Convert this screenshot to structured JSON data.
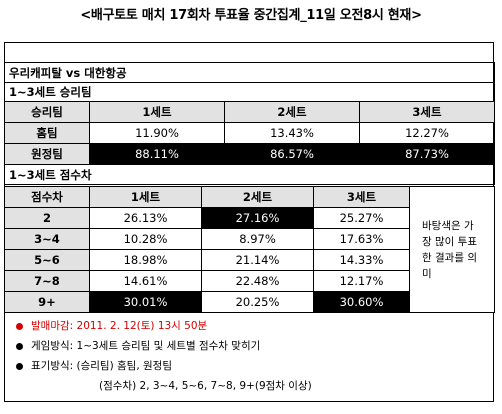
{
  "title": "<배구토토 매치 17회차 투표율 중간집계_11일 오전8시 현재>",
  "match": "우리캐피탈 vs 대한항공",
  "section1": {
    "label": "1~3세트 승리팀",
    "header": [
      "승리팀",
      "1세트",
      "2세트",
      "3세트"
    ],
    "rows": [
      {
        "team": "홈팀",
        "values": [
          "11.90%",
          "13.43%",
          "12.27%"
        ]
      },
      {
        "team": "원정팀",
        "values": [
          "88.11%",
          "86.57%",
          "87.73%"
        ]
      }
    ]
  },
  "section2": {
    "label": "1~3세트 점수차",
    "header": [
      "점수차",
      "1세트",
      "2세트",
      "3세트"
    ],
    "rows": [
      {
        "diff": "2",
        "values": [
          "26.13%",
          "27.16%",
          "25.27%"
        ],
        "highlight": [
          false,
          true,
          false
        ]
      },
      {
        "diff": "3~4",
        "values": [
          "10.28%",
          "8.97%",
          "17.63%"
        ],
        "highlight": [
          false,
          false,
          false
        ]
      },
      {
        "diff": "5~6",
        "values": [
          "18.98%",
          "21.14%",
          "14.33%"
        ],
        "highlight": [
          false,
          false,
          false
        ]
      },
      {
        "diff": "7~8",
        "values": [
          "14.61%",
          "22.48%",
          "12.17%"
        ],
        "highlight": [
          false,
          false,
          false
        ]
      },
      {
        "diff": "9+",
        "values": [
          "30.01%",
          "20.25%",
          "30.60%"
        ],
        "highlight": [
          true,
          false,
          true
        ]
      }
    ],
    "note": "바탕색은 가장 많이 투표한 결과를 의미"
  },
  "notes": {
    "deadline": "발매마감: 2011. 2. 12(토) 13시 50분",
    "method": "게임방식: 1~3세트 승리팀 및 세트별 점수차 맞히기",
    "display": "표기방식: (승리팀) 홈팀, 원정팀",
    "display2": "(점수차) 2, 3~4, 5~6, 7~8, 9+(9점차 이상)"
  },
  "colors": {
    "highlight": "#000000",
    "header_bg": "#e2e2e2",
    "deadline": "#d40000"
  }
}
